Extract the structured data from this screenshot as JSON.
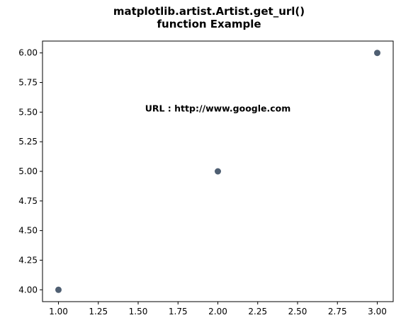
{
  "chart_data": {
    "type": "scatter",
    "title_lines": [
      "matplotlib.artist.Artist.get_url()",
      "function Example"
    ],
    "xlabel": "",
    "ylabel": "",
    "x": [
      1,
      2,
      3
    ],
    "y": [
      4,
      5,
      6
    ],
    "xlim": [
      0.9,
      3.1
    ],
    "ylim": [
      3.9,
      6.1
    ],
    "xticks": [
      1.0,
      1.25,
      1.5,
      1.75,
      2.0,
      2.25,
      2.5,
      2.75,
      3.0
    ],
    "xtick_labels": [
      "1.00",
      "1.25",
      "1.50",
      "1.75",
      "2.00",
      "2.25",
      "2.50",
      "2.75",
      "3.00"
    ],
    "yticks": [
      4.0,
      4.25,
      4.5,
      4.75,
      5.0,
      5.25,
      5.5,
      5.75,
      6.0
    ],
    "ytick_labels": [
      "4.00",
      "4.25",
      "4.50",
      "4.75",
      "5.00",
      "5.25",
      "5.50",
      "5.75",
      "6.00"
    ],
    "grid": false,
    "marker_color": "#4f5f72",
    "annotation": {
      "text": "URL : http://www.google.com",
      "x": 2.0,
      "y": 5.53
    }
  }
}
